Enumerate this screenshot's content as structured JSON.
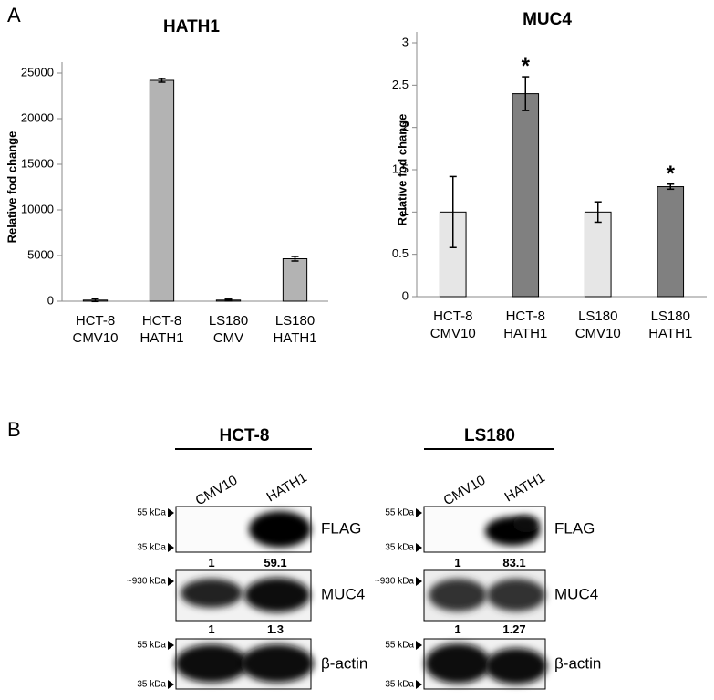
{
  "panel_labels": [
    "A",
    "B"
  ],
  "chart_data": [
    {
      "type": "bar",
      "title": "HATH1",
      "y_label": "Relative fod change",
      "categories": [
        [
          "HCT-8",
          "CMV10"
        ],
        [
          "HCT-8",
          "HATH1"
        ],
        [
          "LS180",
          "CMV"
        ],
        [
          "LS180",
          "HATH1"
        ]
      ],
      "values": [
        120,
        24200,
        120,
        4650
      ],
      "errors": [
        150,
        200,
        100,
        250
      ],
      "color": "#b3b3b3",
      "ylim": [
        0,
        25000
      ],
      "yticks": [
        0,
        5000,
        10000,
        15000,
        20000,
        25000
      ]
    },
    {
      "type": "bar",
      "title": "MUC4",
      "y_label": "Relative fod change",
      "categories": [
        [
          "HCT-8",
          "CMV10"
        ],
        [
          "HCT-8",
          "HATH1"
        ],
        [
          "LS180",
          "CMV10"
        ],
        [
          "LS180",
          "HATH1"
        ]
      ],
      "values": [
        1,
        2.4,
        1,
        1.3
      ],
      "errors": [
        0.42,
        0.2,
        0.12,
        0.03
      ],
      "colors": [
        "#e6e6e6",
        "#808080",
        "#e6e6e6",
        "#808080"
      ],
      "annotations": [
        null,
        "*",
        null,
        "*"
      ],
      "ylim": [
        0,
        3
      ],
      "yticks": [
        0,
        0.5,
        1,
        1.5,
        2,
        2.5,
        3
      ]
    }
  ],
  "blots": [
    {
      "title": "HCT-8",
      "lanes": [
        "CMV10",
        "HATH1"
      ],
      "rows": [
        {
          "label": "FLAG",
          "markers": [
            "55 kDa",
            "35 kDa"
          ],
          "quant": [
            1,
            59.1
          ]
        },
        {
          "label": "MUC4",
          "markers": [
            "~930 kDa"
          ],
          "quant": [
            1,
            1.3
          ]
        },
        {
          "label": "β-actin",
          "markers": [
            "55 kDa",
            "35 kDa"
          ]
        }
      ]
    },
    {
      "title": "LS180",
      "lanes": [
        "CMV10",
        "HATH1"
      ],
      "rows": [
        {
          "label": "FLAG",
          "markers": [
            "55 kDa",
            "35 kDa"
          ],
          "quant": [
            1,
            83.1
          ]
        },
        {
          "label": "MUC4",
          "markers": [
            "~930 kDa"
          ],
          "quant": [
            1,
            1.27
          ]
        },
        {
          "label": "β-actin",
          "markers": [
            "55 kDa",
            "35 kDa"
          ]
        }
      ]
    }
  ]
}
